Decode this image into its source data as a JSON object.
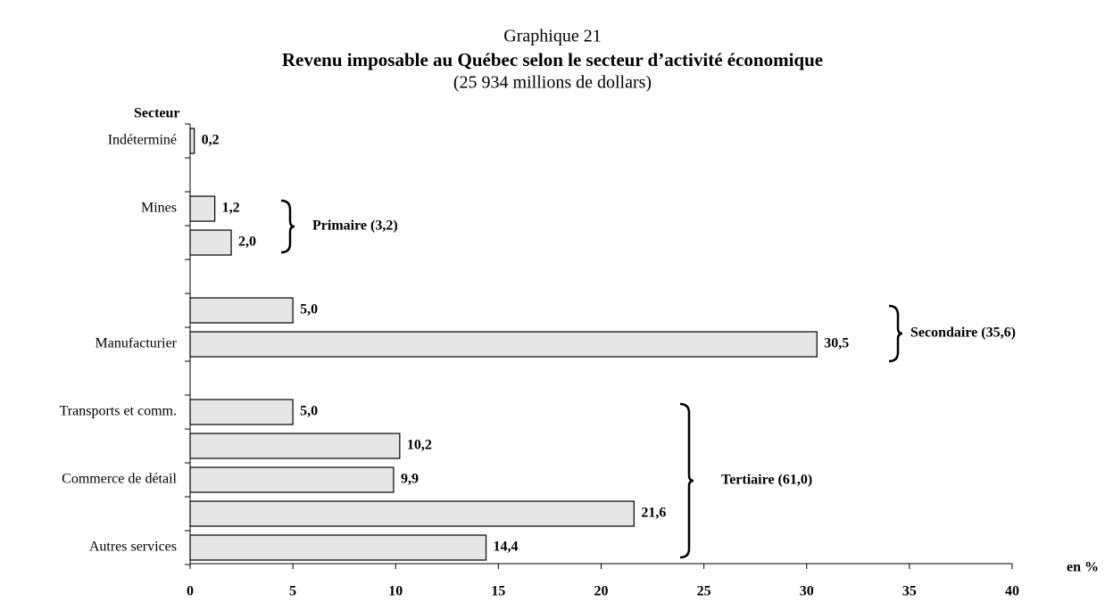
{
  "chart_data": {
    "type": "bar",
    "orientation": "horizontal",
    "title_line1": "Graphique 21",
    "title": "Revenu imposable au Québec selon le secteur d’activité économique",
    "subtitle": "(25 934 millions de dollars)",
    "y_label": "Secteur",
    "x_label": "en %",
    "categories": [
      "Indéterminé",
      "Mines",
      null,
      null,
      "Manufacturier",
      "Transports et comm.",
      null,
      "Commerce de détail",
      null,
      "Autres services"
    ],
    "values": [
      0.2,
      1.2,
      2.0,
      5.0,
      30.5,
      5.0,
      10.2,
      9.9,
      21.6,
      14.4
    ],
    "value_labels": [
      "0,2",
      "1,2",
      "2,0",
      "5,0",
      "30,5",
      "5,0",
      "10,2",
      "9,9",
      "21,6",
      "14,4"
    ],
    "color": "#e6e6e6",
    "annotations": [
      "Primaire (3,2)",
      "Secondaire (35,6)",
      "Tertiaire (61,0)"
    ],
    "xlim": [
      0,
      40
    ],
    "xticks": [
      0,
      5,
      10,
      15,
      20,
      25,
      30,
      35,
      40
    ]
  }
}
